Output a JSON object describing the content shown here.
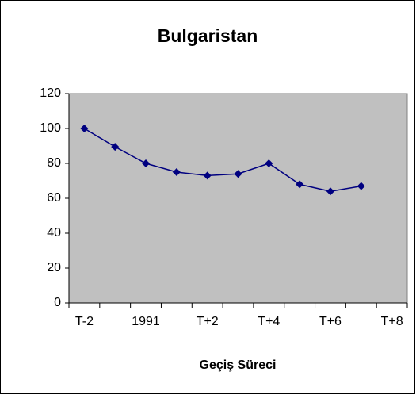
{
  "chart_data": {
    "type": "line",
    "title": "Bulgaristan",
    "x_label": "Geçiş Süreci",
    "categories": [
      "T-2",
      null,
      "1991",
      null,
      "T+2",
      null,
      "T+4",
      null,
      "T+6",
      null,
      "T+8"
    ],
    "series": [
      {
        "name": "Bulgaristan",
        "color": "#000080",
        "values": [
          100,
          89.5,
          80,
          75,
          73,
          74,
          80,
          68,
          64,
          67,
          null
        ]
      }
    ],
    "ylim": [
      0,
      120
    ],
    "yticks": [
      0,
      20,
      40,
      60,
      80,
      100,
      120
    ],
    "plot_background": "#c0c0c0",
    "legend": false
  }
}
